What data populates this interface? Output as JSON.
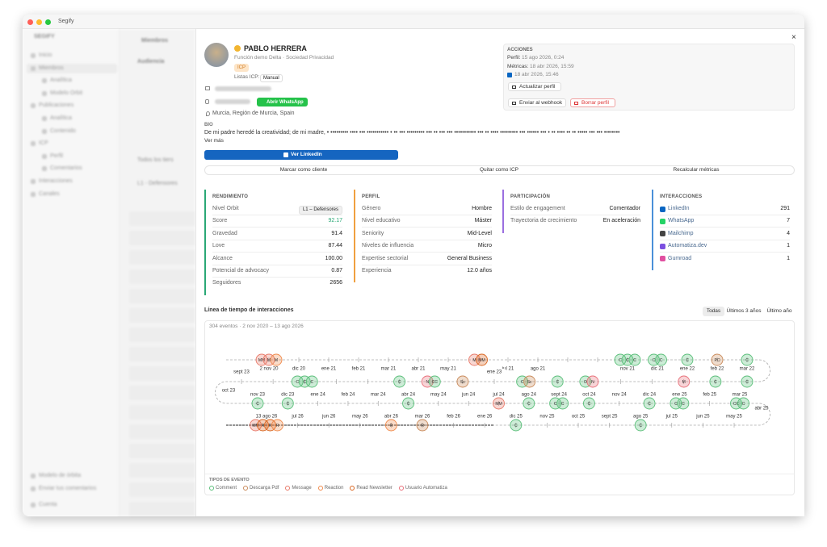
{
  "window": {
    "title": "Segify"
  },
  "sidebar": {
    "brand": "SEGIFY",
    "items": [
      {
        "text": "Inicio",
        "indent": false
      },
      {
        "text": "Miembros",
        "indent": false
      },
      {
        "text": "Analítica",
        "indent": true
      },
      {
        "text": "Modelo Orbit",
        "indent": true
      },
      {
        "text": "Publicaciones",
        "indent": false
      },
      {
        "text": "Analítica",
        "indent": true
      },
      {
        "text": "Contenido",
        "indent": true
      },
      {
        "text": "ICP",
        "indent": false
      },
      {
        "text": "Perfil",
        "indent": true
      },
      {
        "text": "Comentarios",
        "indent": true
      },
      {
        "text": "Interacciones",
        "indent": false
      },
      {
        "text": "Canales",
        "indent": false
      }
    ],
    "footer": [
      "Modelo de órbita",
      "Enviar tus comentarios",
      "Cuenta"
    ]
  },
  "background": {
    "title": "Miembros",
    "section": "Audiencia",
    "filter": "Todos los tiers",
    "tier": "L1 - Defensores"
  },
  "profile": {
    "name": "PABLO HERRERA",
    "role": "Función demo Delta · Sociedad Privacidad",
    "badge": "ICP",
    "lists_label": "Listas ICP:",
    "list": "Manual",
    "whatsapp_button": "Abrir WhatsApp",
    "location": "Murcia, Región de Murcia, Spain",
    "bio_label": "BIO",
    "bio": "De mi padre heredé la creatividad; de mi madre, • ••••••••• •••• ••• ••••••••••• • •• ••• ••••••••• ••• •• ••• ••• ••••••••••• ••• •• •••• ••••••••• ••• •••••• ••• • •• •••• •• •• ••••• ••• ••• ••••••••",
    "more": "Ver más",
    "linkedin_button": "Ver LinkedIn",
    "close": "×"
  },
  "actions": {
    "title": "ACCIONES",
    "rows": [
      {
        "label": "Perfil:",
        "value": "15 ago 2026, 0:24"
      },
      {
        "label": "Métricas:",
        "value": "18 abr 2026, 15:59"
      }
    ],
    "linkedin_date": "18 abr 2026, 15:46",
    "buttons": [
      "Actualizar perfil",
      "Enviar al webhook",
      "Borrar perfil"
    ]
  },
  "toolbar": [
    "Marcar como cliente",
    "Quitar como ICP",
    "Recalcular métricas"
  ],
  "cards": [
    {
      "title": "RENDIMIENTO",
      "color": "#2aa876",
      "rows": [
        {
          "label": "Nivel Orbit",
          "value": "L1 – Defensores",
          "badge": true
        },
        {
          "label": "Score",
          "value": "92.17",
          "color": "#2aa876"
        },
        {
          "label": "Gravedad",
          "value": "91.4"
        },
        {
          "label": "Love",
          "value": "87.44"
        },
        {
          "label": "Alcance",
          "value": "100.00"
        },
        {
          "label": "Potencial de advocacy",
          "value": "0.87"
        },
        {
          "label": "Seguidores",
          "value": "2656"
        }
      ]
    },
    {
      "title": "PERFIL",
      "color": "#f0a040",
      "rows": [
        {
          "label": "Género",
          "value": "Hombre"
        },
        {
          "label": "Nivel educativo",
          "value": "Máster"
        },
        {
          "label": "Seniority",
          "value": "Mid-Level"
        },
        {
          "label": "Niveles de influencia",
          "value": "Micro"
        },
        {
          "label": "Expertise sectorial",
          "value": "General Business"
        },
        {
          "label": "Experiencia",
          "value": "12.0 años"
        }
      ]
    },
    {
      "title": "PARTICIPACIÓN",
      "color": "#9b6fe0",
      "rows": [
        {
          "label": "Estilo de engagement",
          "value": "Comentador"
        },
        {
          "label": "Trayectoria de crecimiento",
          "value": "En aceleración"
        }
      ]
    },
    {
      "title": "INTERACCIONES",
      "color": "#4a90d9",
      "rows": [
        {
          "label": "LinkedIn",
          "value": 291,
          "icon": "#0a66c2"
        },
        {
          "label": "WhatsApp",
          "value": 7,
          "icon": "#25d366"
        },
        {
          "label": "Mailchimp",
          "value": 4,
          "icon": "#444444"
        },
        {
          "label": "Automatiza.dev",
          "value": 1,
          "icon": "#7b4fe0"
        },
        {
          "label": "Gumroad",
          "value": 1,
          "icon": "#e04fa0"
        }
      ]
    }
  ],
  "timeline": {
    "title": "Línea de tiempo de interacciones",
    "filters": [
      "Todas",
      "Últimos 3 años",
      "Último año"
    ],
    "range": "304 eventos · 2 nov 2020 – 13 ago 2026",
    "rows": [
      {
        "months": [
          {
            "label": "2 nov 20",
            "events": [
              [
                "MM",
                2
              ],
              [
                "M",
                2
              ],
              [
                "M",
                3
              ]
            ]
          },
          {
            "label": "dic 20",
            "events": []
          },
          {
            "label": "ene 21",
            "events": []
          },
          {
            "label": "feb 21",
            "events": []
          },
          {
            "label": "mar 21",
            "events": []
          },
          {
            "label": "abr 21",
            "events": []
          },
          {
            "label": "may 21",
            "events": []
          },
          {
            "label": null,
            "events": [
              [
                "M",
                2
              ],
              [
                "MM",
                4
              ]
            ]
          },
          {
            "label": "jul 21",
            "events": []
          },
          {
            "label": "ago 21",
            "events": []
          },
          {
            "label": null,
            "events": []
          },
          {
            "label": null,
            "events": []
          },
          {
            "label": "nov 21",
            "events": [
              [
                "C",
                0
              ],
              [
                "C",
                0
              ],
              [
                "C",
                0
              ]
            ]
          },
          {
            "label": "dic 21",
            "events": [
              [
                "C",
                0
              ],
              [
                "C",
                0
              ]
            ]
          },
          {
            "label": "ene 22",
            "events": [
              [
                "C",
                0
              ]
            ]
          },
          {
            "label": "feb 22",
            "events": [
              [
                "PC",
                1
              ]
            ]
          },
          {
            "label": "mar 22",
            "events": [
              [
                "C",
                0
              ]
            ]
          }
        ]
      },
      {
        "months": [
          {
            "label": "sept 23",
            "events": []
          },
          {
            "label": null,
            "events": []
          },
          {
            "label": null,
            "events": [
              [
                "C",
                0
              ],
              [
                "C",
                0
              ],
              [
                "C",
                0
              ]
            ]
          },
          {
            "label": null,
            "events": []
          },
          {
            "label": null,
            "events": []
          },
          {
            "label": null,
            "events": [
              [
                "C",
                0
              ]
            ]
          },
          {
            "label": null,
            "events": [
              [
                "N",
                5
              ],
              [
                "CC",
                0
              ]
            ]
          },
          {
            "label": null,
            "events": [
              [
                "Sc",
                1
              ]
            ]
          },
          {
            "label": "ene 23",
            "events": []
          },
          {
            "label": null,
            "events": [
              [
                "C",
                0
              ],
              [
                "Sc",
                1
              ]
            ]
          },
          {
            "label": null,
            "events": [
              [
                "C",
                0
              ]
            ]
          },
          {
            "label": null,
            "events": [
              [
                "O",
                0
              ],
              [
                "N",
                5
              ]
            ]
          },
          {
            "label": null,
            "events": []
          },
          {
            "label": null,
            "events": []
          },
          {
            "label": null,
            "events": [
              [
                "M",
                5
              ]
            ]
          },
          {
            "label": null,
            "events": [
              [
                "C",
                0
              ]
            ]
          },
          {
            "label": null,
            "events": [
              [
                "C",
                0
              ]
            ]
          }
        ]
      },
      {
        "months": [
          {
            "label": "nov 23",
            "events": [
              [
                "C",
                0
              ]
            ]
          },
          {
            "label": "dic 23",
            "events": [
              [
                "C",
                0
              ]
            ]
          },
          {
            "label": "ene 24",
            "events": []
          },
          {
            "label": "feb 24",
            "events": []
          },
          {
            "label": "mar 24",
            "events": []
          },
          {
            "label": "abr 24",
            "events": [
              [
                "C",
                0
              ]
            ]
          },
          {
            "label": "may 24",
            "events": []
          },
          {
            "label": "jun 24",
            "events": []
          },
          {
            "label": "jul 24",
            "events": [
              [
                "MM",
                2
              ]
            ]
          },
          {
            "label": "ago 24",
            "events": [
              [
                "C",
                0
              ]
            ]
          },
          {
            "label": "sept 24",
            "events": [
              [
                "C",
                0
              ],
              [
                "C",
                0
              ]
            ]
          },
          {
            "label": "oct 24",
            "events": [
              [
                "C",
                0
              ]
            ]
          },
          {
            "label": "nov 24",
            "events": []
          },
          {
            "label": "dic 24",
            "events": [
              [
                "C",
                0
              ]
            ]
          },
          {
            "label": "ene 25",
            "events": [
              [
                "C",
                0
              ],
              [
                "C",
                0
              ]
            ]
          },
          {
            "label": "feb 25",
            "events": []
          },
          {
            "label": "mar 25",
            "events": [
              [
                "CC",
                0
              ],
              [
                "C",
                0
              ]
            ]
          }
        ]
      },
      {
        "months": [
          {
            "label": "13 ago 26",
            "events": [
              [
                "MM",
                2
              ],
              [
                "R",
                4
              ],
              [
                "R",
                4
              ],
              [
                "R",
                3
              ]
            ]
          },
          {
            "label": "jul 26",
            "events": []
          },
          {
            "label": "jun 26",
            "events": []
          },
          {
            "label": "may 26",
            "events": []
          },
          {
            "label": "abr 26",
            "events": [
              [
                "R",
                3
              ]
            ]
          },
          {
            "label": "mar 26",
            "events": [
              [
                "R",
                1
              ]
            ]
          },
          {
            "label": "feb 26",
            "events": []
          },
          {
            "label": "ene 26",
            "events": []
          },
          {
            "label": "dic 25",
            "events": [
              [
                "C",
                0
              ]
            ]
          },
          {
            "label": "nov 25",
            "events": []
          },
          {
            "label": "oct 25",
            "events": []
          },
          {
            "label": "sept 25",
            "events": []
          },
          {
            "label": "ago 25",
            "events": [
              [
                "C",
                0
              ]
            ]
          },
          {
            "label": "jul 25",
            "events": []
          },
          {
            "label": "jun 25",
            "events": []
          },
          {
            "label": "may 25",
            "events": []
          }
        ]
      }
    ],
    "turn_labels": [
      "oct 23",
      "abr 25"
    ],
    "legend_title": "TIPOS DE EVENTO",
    "legend": [
      {
        "name": "Comment",
        "color": "#5bbf7a"
      },
      {
        "name": "Descarga Pdf",
        "color": "#c98a5a"
      },
      {
        "name": "Message",
        "color": "#e87a6a"
      },
      {
        "name": "Reaction",
        "color": "#f08a4b"
      },
      {
        "name": "Read Newsletter",
        "color": "#d9651f"
      },
      {
        "name": "Usuario Automatiza",
        "color": "#e8707a"
      }
    ]
  }
}
